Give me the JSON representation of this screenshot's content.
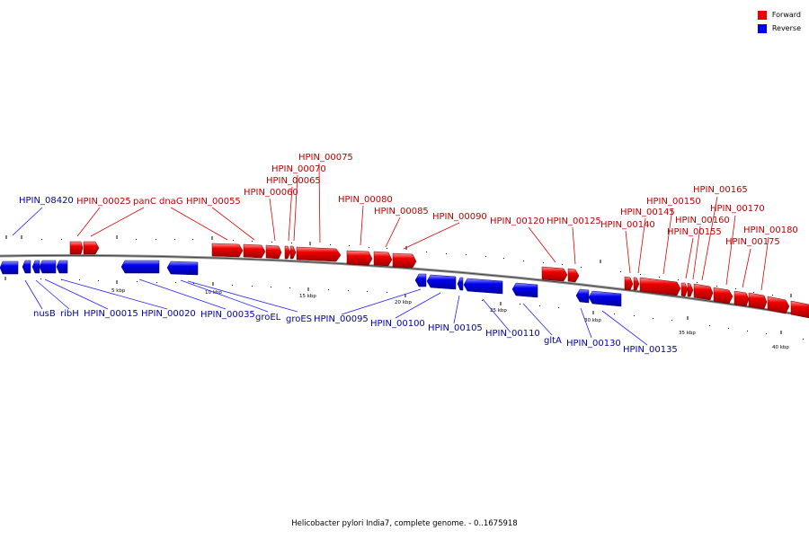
{
  "legend": [
    {
      "label": "Forward",
      "color": "#ee0000"
    },
    {
      "label": "Reverse",
      "color": "#0000ee"
    }
  ],
  "caption": "Helicobacter pylori India7, complete genome. - 0..1675918",
  "colors": {
    "forward": "#ee0000",
    "reverse": "#0000ee",
    "backbone": "#888888"
  },
  "scale_labels": [
    "5 kbp",
    "10 kbp",
    "15 kbp",
    "20 kbp",
    "25 kbp",
    "30 kbp",
    "35 kbp",
    "40 kbp"
  ],
  "forward_labels": [
    "HPIN_00025",
    "panC",
    "dnaG",
    "HPIN_00055",
    "HPIN_00060",
    "HPIN_00065",
    "HPIN_00070",
    "HPIN_00075",
    "HPIN_00080",
    "HPIN_00085",
    "HPIN_00090",
    "HPIN_00120",
    "HPIN_00125",
    "HPIN_00140",
    "HPIN_00145",
    "HPIN_00150",
    "HPIN_00155",
    "HPIN_00160",
    "HPIN_00165",
    "HPIN_00170",
    "HPIN_00175",
    "HPIN_00180"
  ],
  "reverse_labels": [
    "HPIN_08420",
    "nusB",
    "ribH",
    "HPIN_00015",
    "HPIN_00020",
    "HPIN_00035",
    "groEL",
    "groES",
    "HPIN_00095",
    "HPIN_00100",
    "HPIN_00105",
    "HPIN_00110",
    "gltA",
    "HPIN_00130",
    "HPIN_00135"
  ]
}
